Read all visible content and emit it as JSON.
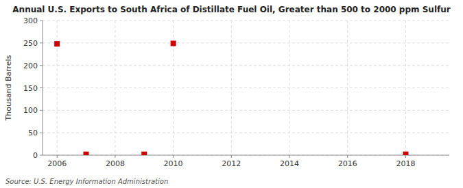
{
  "chart_data": {
    "type": "scatter",
    "title": "Annual U.S. Exports to South Africa of Distillate Fuel Oil, Greater than 500 to 2000 ppm Sulfur",
    "ylabel": "Thousand Barrels",
    "annotations": [
      "Source: U.S. Energy Information Administration"
    ],
    "x": [
      2006,
      2007,
      2009,
      2010,
      2018
    ],
    "values": [
      248,
      2,
      2,
      249,
      2
    ],
    "color": "#cc0000",
    "marker": "square",
    "xlim": [
      2005.5,
      2019.5
    ],
    "ylim": [
      0,
      300
    ],
    "xticks": [
      2006,
      2008,
      2010,
      2012,
      2014,
      2016,
      2018
    ],
    "yticks": [
      0,
      50,
      100,
      150,
      200,
      250,
      300
    ],
    "grid": true
  }
}
